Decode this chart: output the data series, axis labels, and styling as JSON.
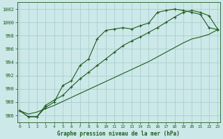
{
  "x": [
    0,
    1,
    2,
    3,
    4,
    5,
    6,
    7,
    8,
    9,
    10,
    11,
    12,
    13,
    14,
    15,
    16,
    17,
    18,
    19,
    20,
    21,
    22,
    23
  ],
  "line1": [
    986.7,
    985.8,
    985.8,
    987.2,
    988.0,
    990.5,
    991.2,
    993.5,
    994.5,
    997.5,
    998.8,
    999.0,
    999.2,
    999.0,
    999.5,
    999.9,
    1001.5,
    1001.8,
    1002.0,
    1001.8,
    1001.5,
    1001.2,
    999.2,
    998.9
  ],
  "line2": [
    986.7,
    985.8,
    985.8,
    987.5,
    988.3,
    989.0,
    990.3,
    991.5,
    992.5,
    993.5,
    994.5,
    995.5,
    996.5,
    997.2,
    997.8,
    998.5,
    999.2,
    1000.0,
    1000.8,
    1001.5,
    1001.8,
    1001.5,
    1001.0,
    999.0
  ],
  "line3": [
    986.7,
    986.2,
    986.5,
    987.0,
    987.5,
    988.1,
    988.7,
    989.3,
    989.9,
    990.5,
    991.1,
    991.7,
    992.3,
    992.9,
    993.5,
    994.1,
    994.8,
    995.5,
    996.2,
    996.9,
    997.5,
    997.8,
    998.2,
    998.9
  ],
  "bg_color": "#cce8e8",
  "grid_color": "#aacfcf",
  "line_color": "#1e5c1e",
  "xlabel": "Graphe pression niveau de la mer (hPa)",
  "ylim": [
    985.0,
    1003.0
  ],
  "yticks": [
    986,
    988,
    990,
    992,
    994,
    996,
    998,
    1000,
    1002
  ],
  "xticks": [
    0,
    1,
    2,
    3,
    4,
    5,
    6,
    7,
    8,
    9,
    10,
    11,
    12,
    13,
    14,
    15,
    16,
    17,
    18,
    19,
    20,
    21,
    22,
    23
  ]
}
